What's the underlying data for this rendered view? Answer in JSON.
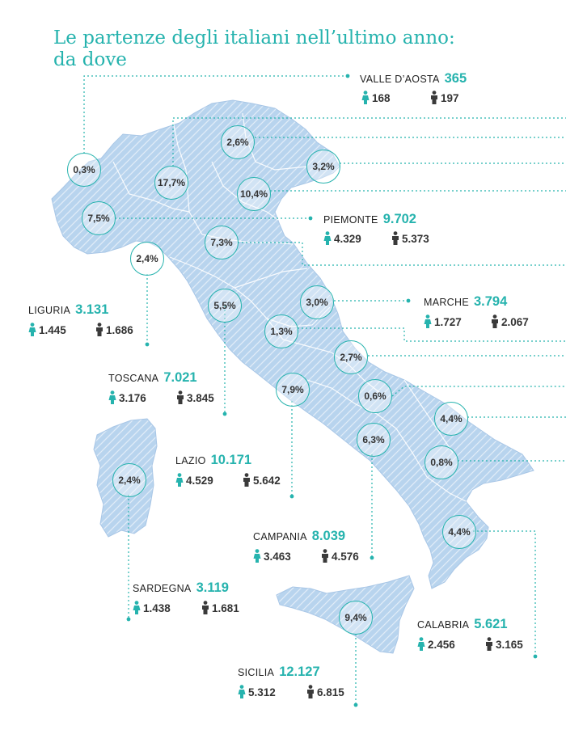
{
  "title": {
    "line1": "Le partenze degli italiani nell’ultimo anno:",
    "line2": "da dove"
  },
  "colors": {
    "accent": "#26b3ae",
    "map_fill": "#b8d4ee",
    "map_stripe": "#dfeaf6",
    "female": "#26b3ae",
    "male": "#3a3a3a"
  },
  "icons": {
    "female": "female-person-icon",
    "male": "male-person-icon"
  },
  "regions": [
    {
      "name": "VALLE D’AOSTA",
      "total": "365",
      "female": "168",
      "male": "197"
    },
    {
      "name": "PIEMONTE",
      "total": "9.702",
      "female": "4.329",
      "male": "5.373"
    },
    {
      "name": "LIGURIA",
      "total": "3.131",
      "female": "1.445",
      "male": "1.686"
    },
    {
      "name": "MARCHE",
      "total": "3.794",
      "female": "1.727",
      "male": "2.067"
    },
    {
      "name": "TOSCANA",
      "total": "7.021",
      "female": "3.176",
      "male": "3.845"
    },
    {
      "name": "LAZIO",
      "total": "10.171",
      "female": "4.529",
      "male": "5.642"
    },
    {
      "name": "CAMPANIA",
      "total": "8.039",
      "female": "3.463",
      "male": "4.576"
    },
    {
      "name": "SARDEGNA",
      "total": "3.119",
      "female": "1.438",
      "male": "1.681"
    },
    {
      "name": "CALABRIA",
      "total": "5.621",
      "female": "2.456",
      "male": "3.165"
    },
    {
      "name": "SICILIA",
      "total": "12.127",
      "female": "5.312",
      "male": "6.815"
    }
  ],
  "percentages": [
    "0,3%",
    "2,6%",
    "3,2%",
    "17,7%",
    "10,4%",
    "7,5%",
    "7,3%",
    "2,4%",
    "5,5%",
    "3,0%",
    "1,3%",
    "2,7%",
    "7,9%",
    "0,6%",
    "4,4%",
    "6,3%",
    "0,8%",
    "2,4%",
    "4,4%",
    "9,4%"
  ]
}
